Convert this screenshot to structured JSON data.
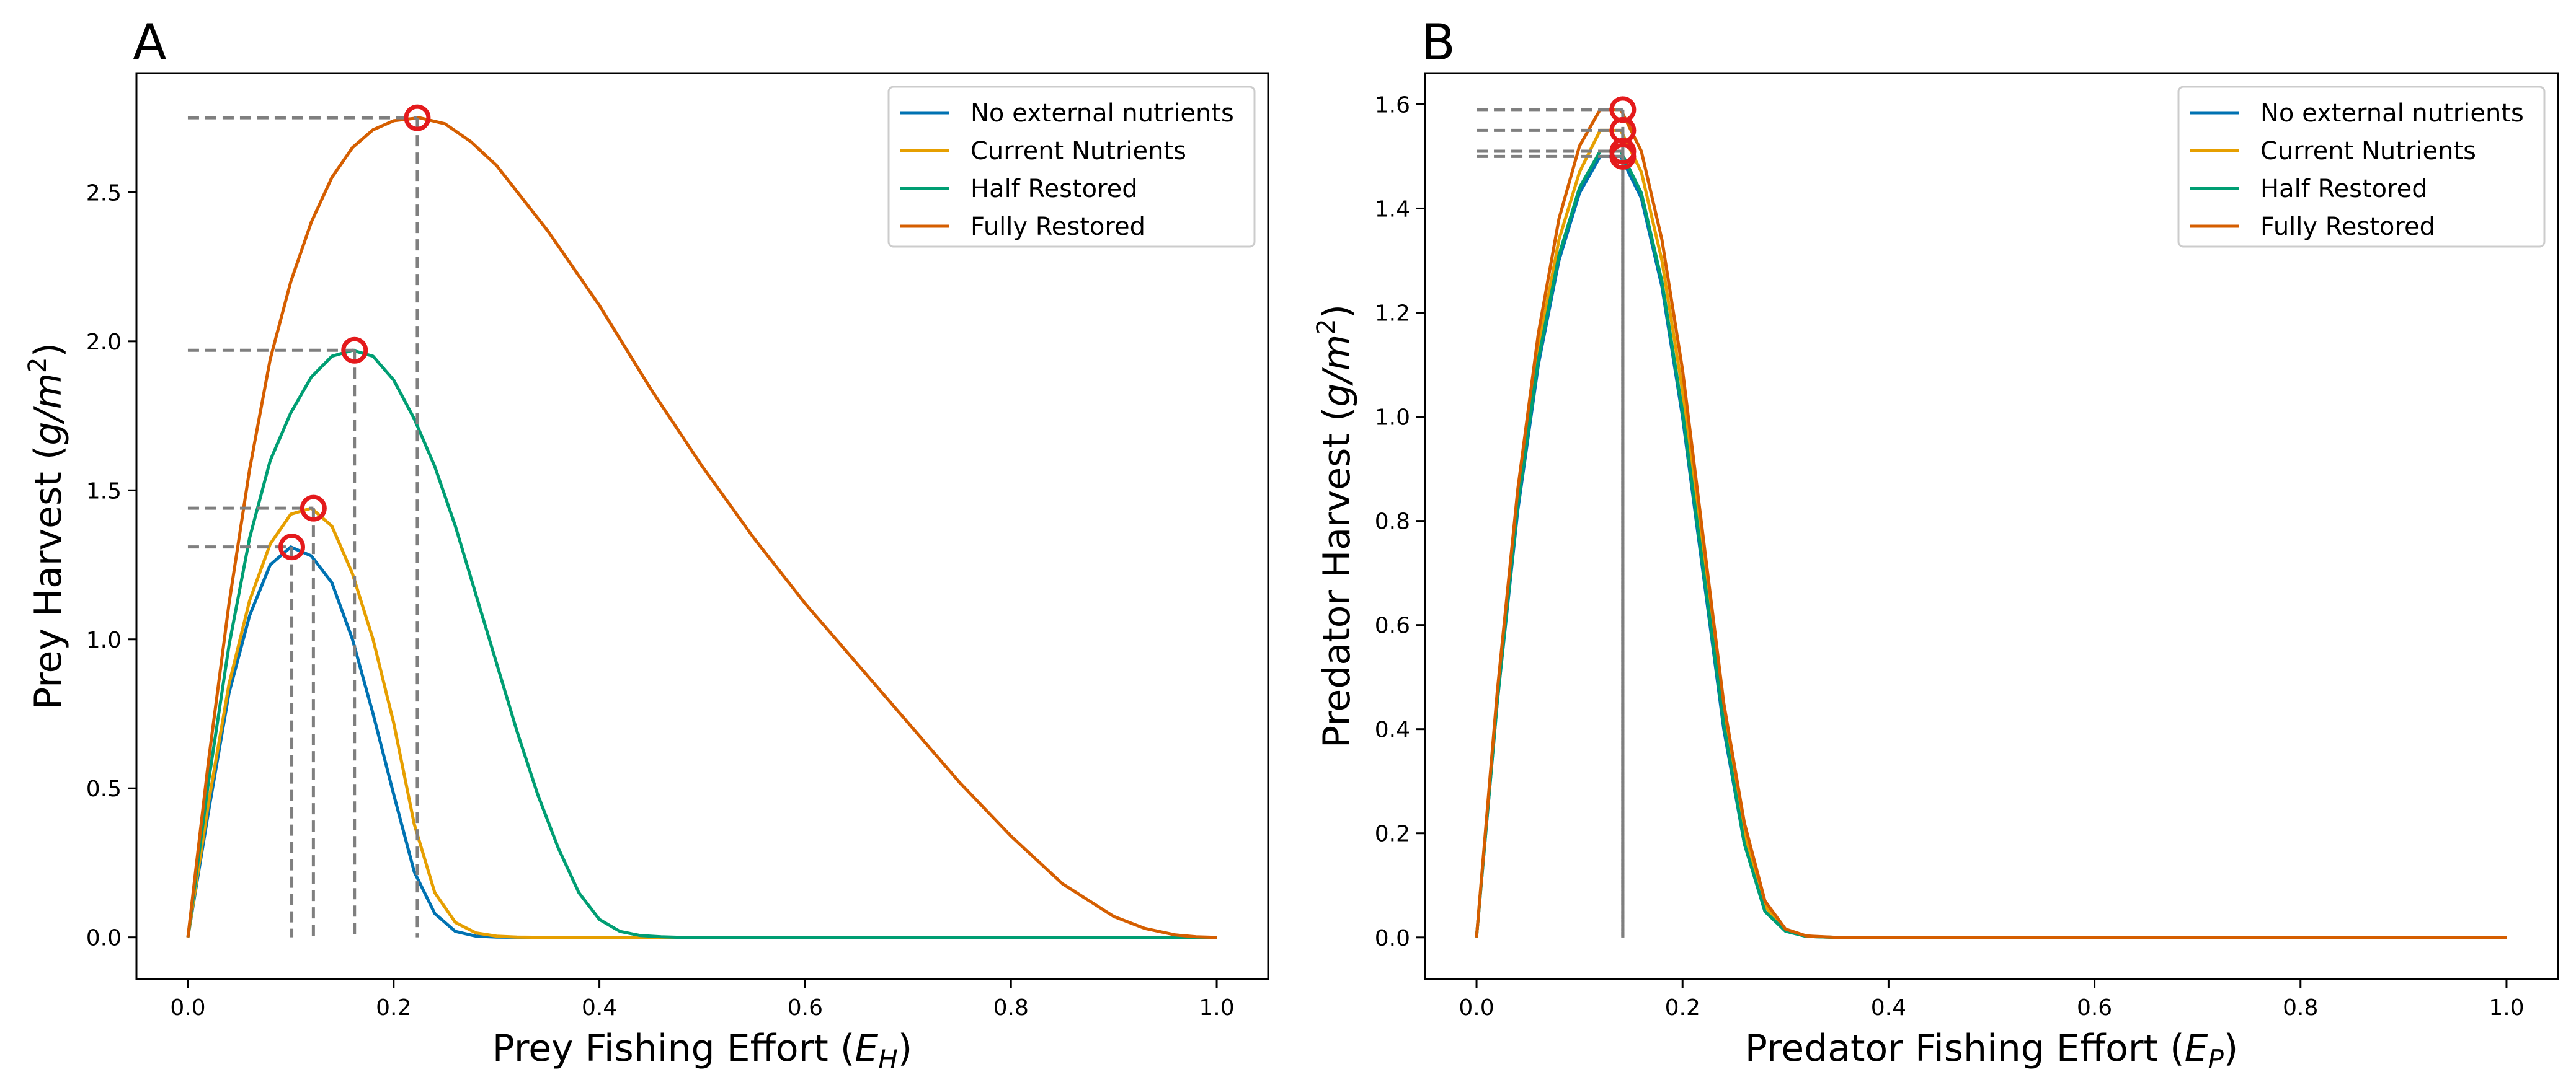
{
  "chart_data": [
    {
      "type": "line",
      "panel_label": "A",
      "xlabel_main": "Prey Fishing Effort (",
      "xlabel_var": "E",
      "xlabel_sub": "H",
      "xlabel_close": ")",
      "ylabel_main": "Prey Harvest (",
      "ylabel_unit": "g/m",
      "ylabel_sup": "2",
      "ylabel_close": ")",
      "xlim": [
        -0.05,
        1.05
      ],
      "ylim": [
        -0.14,
        2.9
      ],
      "xticks": [
        0.0,
        0.2,
        0.4,
        0.6,
        0.8,
        1.0
      ],
      "xtick_labels": [
        "0.0",
        "0.2",
        "0.4",
        "0.6",
        "0.8",
        "1.0"
      ],
      "yticks": [
        0.0,
        0.5,
        1.0,
        1.5,
        2.0,
        2.5
      ],
      "ytick_labels": [
        "0.0",
        "0.5",
        "1.0",
        "1.5",
        "2.0",
        "2.5"
      ],
      "grid": false,
      "legend_position": "top-right",
      "series": [
        {
          "name": "No external nutrients",
          "color": "#0072b2",
          "x": [
            0,
            0.02,
            0.04,
            0.06,
            0.08,
            0.1,
            0.12,
            0.14,
            0.16,
            0.18,
            0.2,
            0.22,
            0.24,
            0.26,
            0.28,
            0.3,
            0.35,
            0.4,
            0.6,
            0.8,
            1.0
          ],
          "y": [
            0,
            0.42,
            0.82,
            1.08,
            1.25,
            1.31,
            1.28,
            1.19,
            1.0,
            0.75,
            0.48,
            0.22,
            0.08,
            0.02,
            0.004,
            0.001,
            0,
            0,
            0,
            0,
            0
          ]
        },
        {
          "name": "Current Nutrients",
          "color": "#e69f00",
          "x": [
            0,
            0.02,
            0.04,
            0.06,
            0.08,
            0.1,
            0.12,
            0.14,
            0.16,
            0.18,
            0.2,
            0.22,
            0.24,
            0.26,
            0.28,
            0.3,
            0.32,
            0.35,
            0.4,
            0.6,
            0.8,
            1.0
          ],
          "y": [
            0,
            0.45,
            0.85,
            1.13,
            1.32,
            1.42,
            1.44,
            1.38,
            1.22,
            1.0,
            0.72,
            0.38,
            0.15,
            0.05,
            0.015,
            0.004,
            0.001,
            0,
            0,
            0,
            0,
            0
          ]
        },
        {
          "name": "Half Restored",
          "color": "#009e73",
          "x": [
            0,
            0.02,
            0.04,
            0.06,
            0.08,
            0.1,
            0.12,
            0.14,
            0.16,
            0.18,
            0.2,
            0.22,
            0.24,
            0.26,
            0.28,
            0.3,
            0.32,
            0.34,
            0.36,
            0.38,
            0.4,
            0.42,
            0.44,
            0.46,
            0.48,
            0.5,
            0.6,
            0.8,
            1.0
          ],
          "y": [
            0,
            0.52,
            0.98,
            1.34,
            1.6,
            1.76,
            1.88,
            1.95,
            1.97,
            1.95,
            1.87,
            1.74,
            1.58,
            1.38,
            1.15,
            0.92,
            0.69,
            0.48,
            0.3,
            0.15,
            0.06,
            0.02,
            0.006,
            0.002,
            0,
            0,
            0,
            0,
            0
          ]
        },
        {
          "name": "Fully Restored",
          "color": "#d55e00",
          "x": [
            0,
            0.02,
            0.04,
            0.06,
            0.08,
            0.1,
            0.12,
            0.14,
            0.16,
            0.18,
            0.2,
            0.225,
            0.25,
            0.275,
            0.3,
            0.35,
            0.4,
            0.45,
            0.5,
            0.55,
            0.6,
            0.65,
            0.7,
            0.75,
            0.8,
            0.85,
            0.9,
            0.93,
            0.96,
            0.98,
            1.0
          ],
          "y": [
            0,
            0.59,
            1.12,
            1.57,
            1.94,
            2.2,
            2.4,
            2.55,
            2.65,
            2.71,
            2.74,
            2.75,
            2.73,
            2.67,
            2.59,
            2.37,
            2.12,
            1.84,
            1.58,
            1.34,
            1.12,
            0.92,
            0.72,
            0.52,
            0.34,
            0.18,
            0.07,
            0.03,
            0.008,
            0.002,
            0
          ]
        }
      ],
      "optima": [
        {
          "x": 0.101,
          "y": 1.31,
          "color": "#0072b2"
        },
        {
          "x": 0.122,
          "y": 1.44,
          "color": "#e69f00"
        },
        {
          "x": 0.162,
          "y": 1.97,
          "color": "#009e73"
        },
        {
          "x": 0.223,
          "y": 2.75,
          "color": "#d55e00"
        }
      ]
    },
    {
      "type": "line",
      "panel_label": "B",
      "xlabel_main": "Predator Fishing Effort (",
      "xlabel_var": "E",
      "xlabel_sub": "P",
      "xlabel_close": ")",
      "ylabel_main": "Predator Harvest (",
      "ylabel_unit": "g/m",
      "ylabel_sup": "2",
      "ylabel_close": ")",
      "xlim": [
        -0.05,
        1.05
      ],
      "ylim": [
        -0.08,
        1.66
      ],
      "xticks": [
        0.0,
        0.2,
        0.4,
        0.6,
        0.8,
        1.0
      ],
      "xtick_labels": [
        "0.0",
        "0.2",
        "0.4",
        "0.6",
        "0.8",
        "1.0"
      ],
      "yticks": [
        0.0,
        0.2,
        0.4,
        0.6,
        0.8,
        1.0,
        1.2,
        1.4,
        1.6
      ],
      "ytick_labels": [
        "0.0",
        "0.2",
        "0.4",
        "0.6",
        "0.8",
        "1.0",
        "1.2",
        "1.4",
        "1.6"
      ],
      "grid": false,
      "legend_position": "top-right",
      "series": [
        {
          "name": "No external nutrients",
          "color": "#0072b2",
          "x": [
            0,
            0.02,
            0.04,
            0.06,
            0.08,
            0.1,
            0.12,
            0.14,
            0.16,
            0.18,
            0.2,
            0.22,
            0.24,
            0.26,
            0.28,
            0.3,
            0.32,
            0.35,
            0.4,
            0.6,
            0.8,
            1.0
          ],
          "y": [
            0,
            0.45,
            0.82,
            1.1,
            1.3,
            1.43,
            1.5,
            1.5,
            1.42,
            1.25,
            1.0,
            0.7,
            0.4,
            0.18,
            0.05,
            0.012,
            0.002,
            0,
            0,
            0,
            0,
            0
          ]
        },
        {
          "name": "Current Nutrients",
          "color": "#e69f00",
          "x": [
            0,
            0.02,
            0.04,
            0.06,
            0.08,
            0.1,
            0.12,
            0.14,
            0.16,
            0.18,
            0.2,
            0.22,
            0.24,
            0.26,
            0.28,
            0.3,
            0.32,
            0.35,
            0.4,
            0.6,
            0.8,
            1.0
          ],
          "y": [
            0,
            0.46,
            0.84,
            1.13,
            1.34,
            1.47,
            1.55,
            1.55,
            1.47,
            1.3,
            1.05,
            0.74,
            0.43,
            0.2,
            0.06,
            0.014,
            0.002,
            0,
            0,
            0,
            0,
            0
          ]
        },
        {
          "name": "Half Restored",
          "color": "#009e73",
          "x": [
            0,
            0.02,
            0.04,
            0.06,
            0.08,
            0.1,
            0.12,
            0.14,
            0.16,
            0.18,
            0.2,
            0.22,
            0.24,
            0.26,
            0.28,
            0.3,
            0.32,
            0.35,
            0.4,
            0.6,
            0.8,
            1.0
          ],
          "y": [
            0,
            0.45,
            0.83,
            1.11,
            1.31,
            1.44,
            1.51,
            1.51,
            1.43,
            1.26,
            1.01,
            0.71,
            0.41,
            0.18,
            0.05,
            0.012,
            0.002,
            0,
            0,
            0,
            0,
            0
          ]
        },
        {
          "name": "Fully Restored",
          "color": "#d55e00",
          "x": [
            0,
            0.02,
            0.04,
            0.06,
            0.08,
            0.1,
            0.12,
            0.14,
            0.16,
            0.18,
            0.2,
            0.22,
            0.24,
            0.26,
            0.28,
            0.3,
            0.32,
            0.35,
            0.4,
            0.6,
            0.8,
            1.0
          ],
          "y": [
            0,
            0.47,
            0.86,
            1.16,
            1.38,
            1.52,
            1.59,
            1.59,
            1.51,
            1.34,
            1.09,
            0.77,
            0.45,
            0.22,
            0.07,
            0.016,
            0.003,
            0,
            0,
            0,
            0,
            0
          ]
        }
      ],
      "optima": [
        {
          "x": 0.142,
          "y": 1.5,
          "color": "#0072b2"
        },
        {
          "x": 0.142,
          "y": 1.55,
          "color": "#e69f00"
        },
        {
          "x": 0.142,
          "y": 1.51,
          "color": "#009e73"
        },
        {
          "x": 0.142,
          "y": 1.59,
          "color": "#d55e00"
        }
      ]
    }
  ]
}
